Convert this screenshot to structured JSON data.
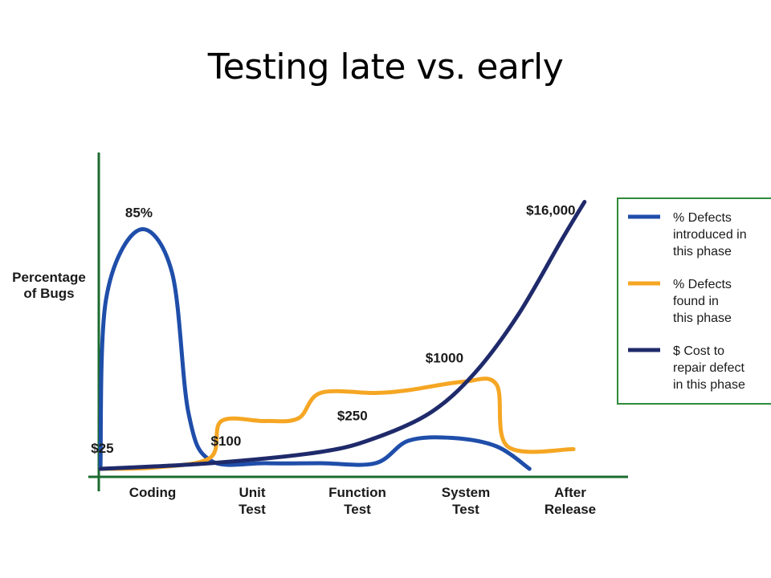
{
  "slide": {
    "title": "Testing late vs. early"
  },
  "chart_data": {
    "type": "line",
    "title": "",
    "ylabel": [
      "Percentage",
      "of Bugs"
    ],
    "xlabel": "",
    "categories": [
      "Coding",
      "Unit Test",
      "Function Test",
      "System Test",
      "After Release"
    ],
    "category_lines": [
      [
        "Coding"
      ],
      [
        "Unit",
        "Test"
      ],
      [
        "Function",
        "Test"
      ],
      [
        "System",
        "Test"
      ],
      [
        "After",
        "Release"
      ]
    ],
    "grid": false,
    "legend_position": "right",
    "series": [
      {
        "name": "% Defects introduced in this phase",
        "legend_lines": [
          "% Defects",
          "introduced in",
          "this phase"
        ],
        "color": "#1f4eaa",
        "points": [
          [
            0,
            0
          ],
          [
            0.05,
            60
          ],
          [
            0.35,
            85
          ],
          [
            0.65,
            70
          ],
          [
            0.8,
            20
          ],
          [
            1.0,
            3
          ],
          [
            1.5,
            2
          ],
          [
            2.0,
            2
          ],
          [
            2.5,
            2
          ],
          [
            2.8,
            10
          ],
          [
            3.2,
            11
          ],
          [
            3.6,
            8
          ],
          [
            3.9,
            0
          ]
        ]
      },
      {
        "name": "% Defects found in this phase",
        "legend_lines": [
          "% Defects",
          "found in",
          "this phase"
        ],
        "color": "#f5a623",
        "points": [
          [
            0,
            0
          ],
          [
            0.5,
            0.5
          ],
          [
            1.0,
            4
          ],
          [
            1.1,
            17
          ],
          [
            1.5,
            17
          ],
          [
            1.8,
            18
          ],
          [
            2.0,
            27
          ],
          [
            2.5,
            27
          ],
          [
            2.8,
            28
          ],
          [
            3.3,
            31
          ],
          [
            3.6,
            30
          ],
          [
            3.7,
            8
          ],
          [
            4.3,
            7
          ]
        ]
      },
      {
        "name": "$ Cost to repair defect in this phase",
        "legend_lines": [
          "$ Cost to",
          "repair defect",
          "in this phase"
        ],
        "color": "#1f2a6b",
        "points": [
          [
            0,
            0
          ],
          [
            1.0,
            2
          ],
          [
            2.0,
            6
          ],
          [
            2.5,
            11
          ],
          [
            3.0,
            20
          ],
          [
            3.4,
            34
          ],
          [
            3.8,
            55
          ],
          [
            4.2,
            82
          ],
          [
            4.4,
            95
          ]
        ]
      }
    ],
    "annotations": [
      {
        "text": "85%",
        "x": 0.35,
        "y": 85,
        "series": "% Defects introduced in this phase"
      },
      {
        "text": "$25",
        "x": 0.2,
        "y": 0,
        "series": "$ Cost to repair defect in this phase"
      },
      {
        "text": "$100",
        "x": 1.2,
        "y": 2,
        "series": "$ Cost to repair defect in this phase"
      },
      {
        "text": "$250",
        "x": 2.4,
        "y": 11,
        "series": "$ Cost to repair defect in this phase"
      },
      {
        "text": "$1000",
        "x": 3.2,
        "y": 31,
        "series": "$ Cost to repair defect in this phase"
      },
      {
        "text": "$16,000",
        "x": 4.4,
        "y": 95,
        "series": "$ Cost to repair defect in this phase"
      }
    ],
    "colors": {
      "axis": "#1b6b2f",
      "legend_border": "#2e8b3a"
    }
  }
}
